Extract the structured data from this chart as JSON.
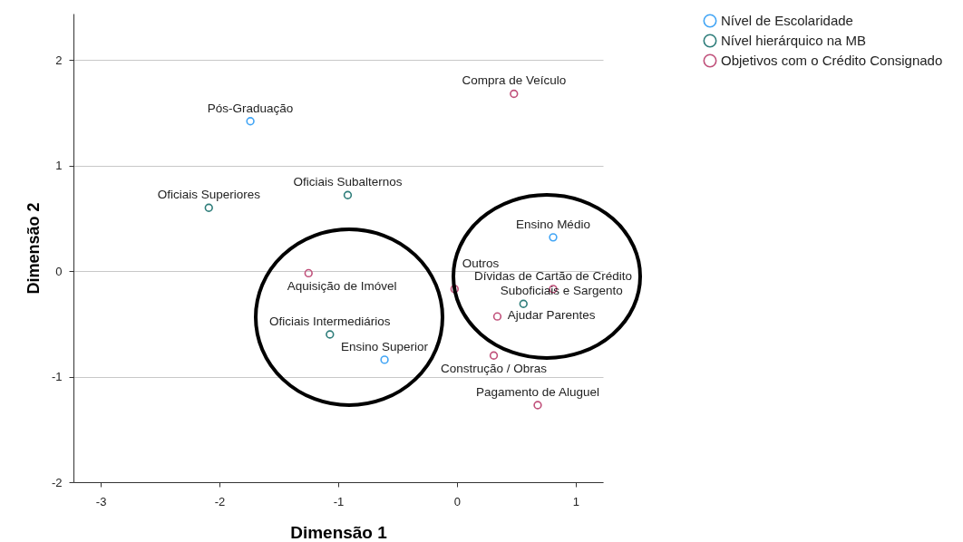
{
  "chart_data": {
    "type": "scatter",
    "xlabel": "Dimensão 1",
    "ylabel": "Dimensão 2",
    "xlim": [
      -3.23,
      1.23
    ],
    "ylim": [
      -2,
      2.44
    ],
    "xticks": [
      -3,
      -2,
      -1,
      0,
      1
    ],
    "yticks": [
      -2,
      -1,
      0,
      1,
      2
    ],
    "grid": "y",
    "legend": "top right",
    "marker": "circle",
    "series": [
      {
        "name": "Nível de Escolaridade",
        "color": "#42a5f5",
        "x": [
          -1.74,
          0.81,
          -0.61
        ],
        "values": [
          1.42,
          0.32,
          -0.84
        ],
        "value_labels": [
          "Pós-Graduação",
          "Ensino Médio",
          "Ensino Superior"
        ]
      },
      {
        "name": "Nível hierárquico na MB",
        "color": "#2e7d7a",
        "x": [
          -2.09,
          -0.92,
          -1.07,
          0.56
        ],
        "values": [
          0.6,
          0.72,
          -0.6,
          -0.31
        ],
        "value_labels": [
          "Oficiais Superiores",
          "Oficiais Subalternos",
          "Oficiais Intermediários",
          "Suboficiais e Sargento"
        ]
      },
      {
        "name": "Objetivos com o Crédito Consignado",
        "color": "#c0507a",
        "x": [
          0.48,
          -1.25,
          0.81,
          -0.02,
          0.34,
          0.31,
          0.68
        ],
        "values": [
          1.68,
          -0.02,
          -0.17,
          -0.17,
          -0.43,
          -0.8,
          -1.27
        ],
        "value_labels": [
          "Compra de Veículo",
          "Aquisição de Imóvel",
          "Dívidas de Cartão de Crédito",
          "Outros",
          "Ajudar Parentes",
          "Construção / Obras",
          "Pagamento de Aluguel"
        ]
      }
    ]
  }
}
